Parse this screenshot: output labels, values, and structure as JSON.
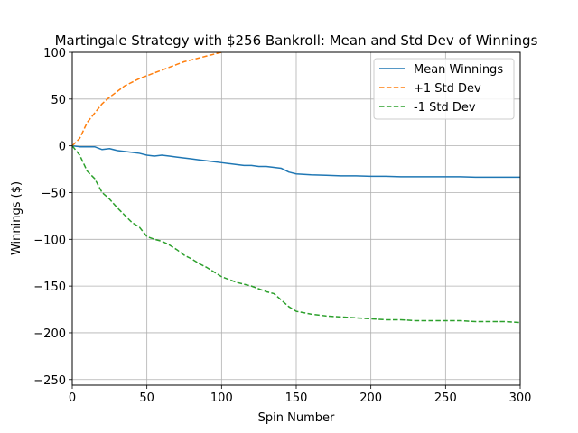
{
  "chart_data": {
    "type": "line",
    "title": "Martingale Strategy with $256 Bankroll: Mean and Std Dev of Winnings",
    "xlabel": "Spin Number",
    "ylabel": "Winnings ($)",
    "xlim": [
      0,
      300
    ],
    "ylim": [
      -256,
      100
    ],
    "xticks": [
      0,
      50,
      100,
      150,
      200,
      250,
      300
    ],
    "yticks": [
      -250,
      -200,
      -150,
      -100,
      -50,
      0,
      50,
      100
    ],
    "grid": true,
    "legend_position": "top-right",
    "series": [
      {
        "name": "Mean Winnings",
        "color": "#1f77b4",
        "style": "solid",
        "x": [
          0,
          5,
          10,
          15,
          20,
          25,
          30,
          35,
          40,
          45,
          50,
          55,
          60,
          65,
          70,
          75,
          80,
          85,
          90,
          95,
          100,
          105,
          110,
          115,
          120,
          125,
          130,
          135,
          140,
          145,
          150,
          160,
          170,
          180,
          190,
          200,
          210,
          220,
          230,
          240,
          250,
          260,
          270,
          280,
          290,
          300
        ],
        "y": [
          0,
          -1,
          -1,
          -1,
          -4,
          -3,
          -5,
          -6,
          -7,
          -8,
          -10,
          -11,
          -10,
          -11,
          -12,
          -13,
          -14,
          -15,
          -16,
          -17,
          -18,
          -19,
          -20,
          -21,
          -21,
          -22,
          -22,
          -23,
          -24,
          -28,
          -30,
          -31,
          -31.5,
          -32,
          -32,
          -32.5,
          -32.5,
          -33,
          -33,
          -33,
          -33,
          -33,
          -33.5,
          -33.5,
          -33.5,
          -33.5
        ]
      },
      {
        "name": "+1 Std Dev",
        "color": "#ff7f0e",
        "style": "dashed",
        "x": [
          0,
          5,
          10,
          15,
          20,
          25,
          30,
          35,
          40,
          45,
          50,
          55,
          60,
          65,
          70,
          75,
          80,
          85,
          90,
          95,
          100
        ],
        "y": [
          0,
          8,
          25,
          35,
          45,
          52,
          58,
          64,
          68,
          72,
          75,
          78,
          81,
          84,
          87,
          90,
          92,
          94,
          96,
          98,
          100
        ]
      },
      {
        "name": "-1 Std Dev",
        "color": "#2ca02c",
        "style": "dashed",
        "x": [
          0,
          5,
          10,
          15,
          20,
          25,
          30,
          35,
          40,
          45,
          50,
          55,
          60,
          65,
          70,
          75,
          80,
          85,
          90,
          95,
          100,
          105,
          110,
          115,
          120,
          125,
          130,
          135,
          140,
          145,
          150,
          160,
          170,
          180,
          190,
          200,
          210,
          220,
          230,
          240,
          250,
          260,
          270,
          280,
          290,
          300
        ],
        "y": [
          0,
          -10,
          -27,
          -35,
          -50,
          -57,
          -66,
          -74,
          -82,
          -87,
          -97,
          -100,
          -102,
          -106,
          -111,
          -117,
          -121,
          -126,
          -130,
          -135,
          -140,
          -143,
          -146,
          -148,
          -150,
          -153,
          -156,
          -158,
          -165,
          -172,
          -177,
          -180,
          -182,
          -183,
          -184,
          -185,
          -186,
          -186,
          -187,
          -187,
          -187,
          -187,
          -188,
          -188,
          -188,
          -189
        ]
      }
    ]
  }
}
